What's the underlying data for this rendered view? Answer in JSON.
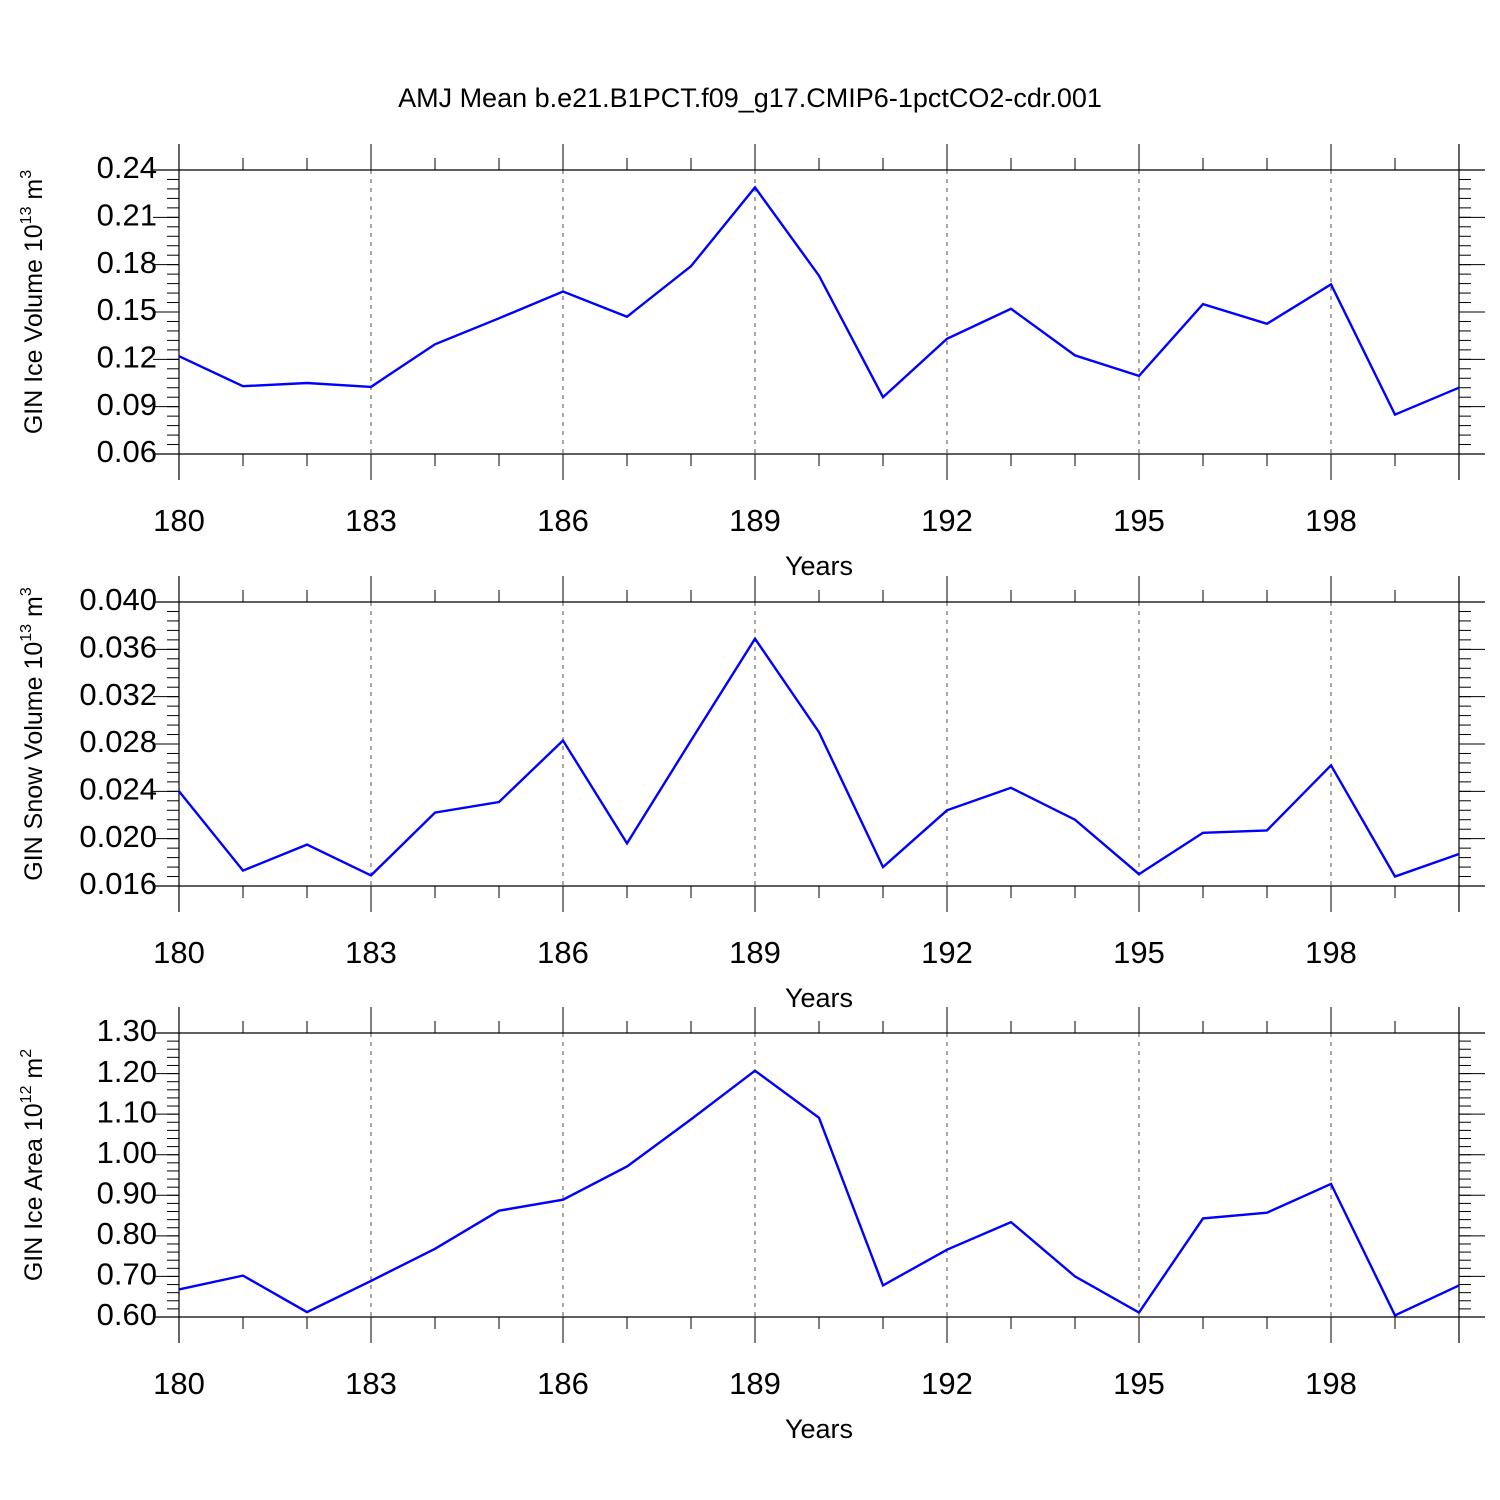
{
  "title": "AMJ Mean b.e21.B1PCT.f09_g17.CMIP6-1pctCO2-cdr.001",
  "colors": {
    "series": "#0000ff",
    "axis": "#000000",
    "grid": "#555555"
  },
  "chart_data": [
    {
      "type": "line",
      "ylabel": "GIN Ice Volume 10",
      "ylabel_exp": "13",
      "ylabel_unit": " m",
      "ylabel_unit_exp": "3",
      "xlabel": "Years",
      "x_ticks": [
        180,
        183,
        186,
        189,
        192,
        195,
        198
      ],
      "x_tick_labels": [
        "180",
        "183",
        "186",
        "189",
        "192",
        "195",
        "198"
      ],
      "xlim": [
        180,
        200
      ],
      "ylim": [
        0.06,
        0.24
      ],
      "y_ticks": [
        0.06,
        0.09,
        0.12,
        0.15,
        0.18,
        0.21,
        0.24
      ],
      "y_tick_labels": [
        "0.06",
        "0.09",
        "0.12",
        "0.15",
        "0.18",
        "0.21",
        "0.24"
      ],
      "y_minor_step": 0.006,
      "x": [
        180,
        181,
        182,
        183,
        184,
        185,
        186,
        187,
        188,
        189,
        190,
        191,
        192,
        193,
        194,
        195,
        196,
        197,
        198,
        199,
        200
      ],
      "values": [
        0.122,
        0.103,
        0.105,
        0.1025,
        0.1295,
        0.146,
        0.163,
        0.147,
        0.179,
        0.229,
        0.173,
        0.096,
        0.133,
        0.152,
        0.1225,
        0.1095,
        0.155,
        0.1425,
        0.1675,
        0.085,
        0.102
      ]
    },
    {
      "type": "line",
      "ylabel": "GIN Snow Volume 10",
      "ylabel_exp": "13",
      "ylabel_unit": " m",
      "ylabel_unit_exp": "3",
      "xlabel": "Years",
      "x_ticks": [
        180,
        183,
        186,
        189,
        192,
        195,
        198
      ],
      "x_tick_labels": [
        "180",
        "183",
        "186",
        "189",
        "192",
        "195",
        "198"
      ],
      "xlim": [
        180,
        200
      ],
      "ylim": [
        0.016,
        0.04
      ],
      "y_ticks": [
        0.016,
        0.02,
        0.024,
        0.028,
        0.032,
        0.036,
        0.04
      ],
      "y_tick_labels": [
        "0.016",
        "0.020",
        "0.024",
        "0.028",
        "0.032",
        "0.036",
        "0.040"
      ],
      "y_minor_step": 0.0008,
      "x": [
        180,
        181,
        182,
        183,
        184,
        185,
        186,
        187,
        188,
        189,
        190,
        191,
        192,
        193,
        194,
        195,
        196,
        197,
        198,
        199,
        200
      ],
      "values": [
        0.024,
        0.0173,
        0.0195,
        0.0169,
        0.0222,
        0.0231,
        0.0283,
        0.0196,
        0.0283,
        0.0369,
        0.029,
        0.0176,
        0.0224,
        0.0243,
        0.0216,
        0.017,
        0.0205,
        0.0207,
        0.0262,
        0.0168,
        0.0187
      ]
    },
    {
      "type": "line",
      "ylabel": "GIN Ice Area 10",
      "ylabel_exp": "12",
      "ylabel_unit": " m",
      "ylabel_unit_exp": "2",
      "xlabel": "Years",
      "x_ticks": [
        180,
        183,
        186,
        189,
        192,
        195,
        198
      ],
      "x_tick_labels": [
        "180",
        "183",
        "186",
        "189",
        "192",
        "195",
        "198"
      ],
      "xlim": [
        180,
        200
      ],
      "ylim": [
        0.6,
        1.3
      ],
      "y_ticks": [
        0.6,
        0.7,
        0.8,
        0.9,
        1.0,
        1.1,
        1.2,
        1.3
      ],
      "y_tick_labels": [
        "0.60",
        "0.70",
        "0.80",
        "0.90",
        "1.00",
        "1.10",
        "1.20",
        "1.30"
      ],
      "y_minor_step": 0.02,
      "x": [
        180,
        181,
        182,
        183,
        184,
        185,
        186,
        187,
        188,
        189,
        190,
        191,
        192,
        193,
        194,
        195,
        196,
        197,
        198,
        199,
        200
      ],
      "values": [
        0.668,
        0.702,
        0.612,
        0.689,
        0.768,
        0.862,
        0.889,
        0.971,
        1.087,
        1.207,
        1.091,
        0.678,
        0.766,
        0.834,
        0.7,
        0.611,
        0.843,
        0.857,
        0.928,
        0.604,
        0.678
      ]
    }
  ]
}
